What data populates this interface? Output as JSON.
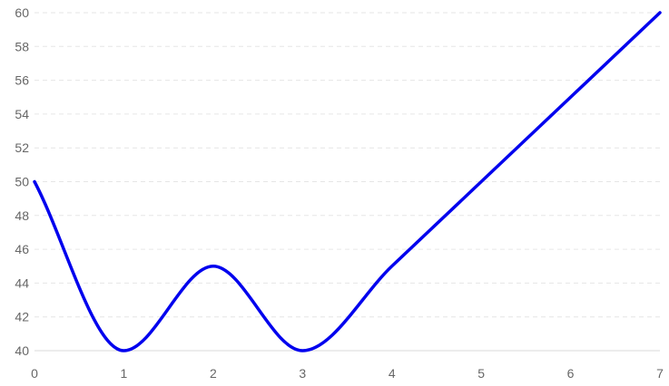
{
  "chart_data": {
    "type": "line",
    "title": "",
    "xlabel": "",
    "ylabel": "",
    "x": [
      0,
      1,
      2,
      3,
      4,
      5,
      6,
      7
    ],
    "series": [
      {
        "values": [
          50,
          40,
          45,
          40,
          45,
          50,
          55,
          60
        ]
      }
    ],
    "xlim": [
      0,
      7
    ],
    "ylim": [
      40,
      60
    ],
    "xticks": [
      "0",
      "1",
      "2",
      "3",
      "4",
      "5",
      "6",
      "7"
    ],
    "yticks": [
      "40",
      "42",
      "44",
      "46",
      "48",
      "50",
      "52",
      "54",
      "56",
      "58",
      "60"
    ],
    "grid": "horizontal-dashed",
    "legend": "none",
    "line_color": "#0000ee",
    "line_style": "smooth"
  }
}
